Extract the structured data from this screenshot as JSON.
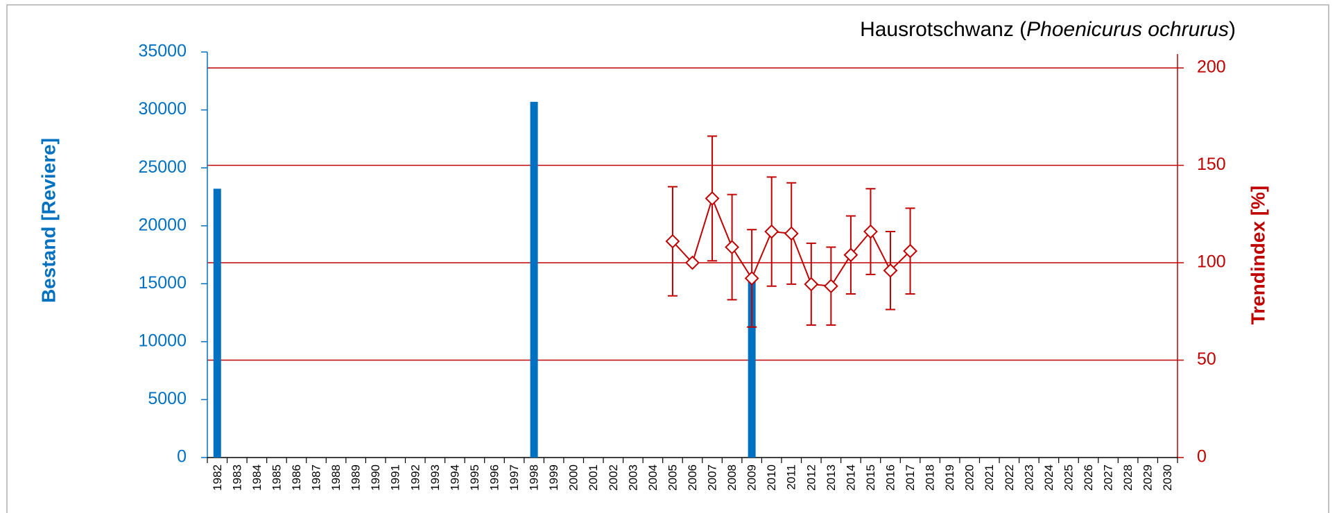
{
  "chart_data": {
    "type": "bar_line",
    "title": [
      "Hausrotschwanz (",
      "Phoenicurus ochrurus",
      ")"
    ],
    "ylabel": "Bestand [Reviere]",
    "y2label": "Trendindex [%]",
    "categories": [
      "1982",
      "1983",
      "1984",
      "1985",
      "1986",
      "1987",
      "1988",
      "1989",
      "1990",
      "1991",
      "1992",
      "1993",
      "1994",
      "1995",
      "1996",
      "1997",
      "1998",
      "1999",
      "2000",
      "2001",
      "2002",
      "2003",
      "2004",
      "2005",
      "2006",
      "2007",
      "2008",
      "2009",
      "2010",
      "2011",
      "2012",
      "2013",
      "2014",
      "2015",
      "2016",
      "2017",
      "2018",
      "2019",
      "2020",
      "2021",
      "2022",
      "2023",
      "2024",
      "2025",
      "2026",
      "2027",
      "2028",
      "2029",
      "2030"
    ],
    "ylim": [
      0,
      35000
    ],
    "yticks": [
      0,
      5000,
      10000,
      15000,
      20000,
      25000,
      30000,
      35000
    ],
    "y2lim": [
      0,
      200
    ],
    "y2ticks": [
      0,
      50,
      100,
      150,
      200
    ],
    "grid": true,
    "series": [
      {
        "name": "Bestand",
        "type": "bar",
        "color": "#0070c0",
        "values": [
          23200,
          null,
          null,
          null,
          null,
          null,
          null,
          null,
          null,
          null,
          null,
          null,
          null,
          null,
          null,
          null,
          30700,
          null,
          null,
          null,
          null,
          null,
          null,
          null,
          null,
          null,
          null,
          15400,
          null,
          null,
          null,
          null,
          null,
          null,
          null,
          null,
          null,
          null,
          null,
          null,
          null,
          null,
          null,
          null,
          null,
          null,
          null,
          null,
          null
        ]
      },
      {
        "name": "Trendindex",
        "type": "line",
        "axis": "y2",
        "color": "#c00000",
        "values": [
          null,
          null,
          null,
          null,
          null,
          null,
          null,
          null,
          null,
          null,
          null,
          null,
          null,
          null,
          null,
          null,
          null,
          null,
          null,
          null,
          null,
          null,
          null,
          111,
          100,
          133,
          108,
          92,
          116,
          115,
          89,
          88,
          104,
          116,
          96,
          106,
          null,
          null,
          null,
          null,
          null,
          null,
          null,
          null,
          null,
          null,
          null,
          null,
          null
        ],
        "errors": [
          null,
          null,
          null,
          null,
          null,
          null,
          null,
          null,
          null,
          null,
          null,
          null,
          null,
          null,
          null,
          null,
          null,
          null,
          null,
          null,
          null,
          null,
          null,
          28,
          null,
          32,
          27,
          25,
          28,
          26,
          21,
          20,
          20,
          22,
          20,
          22,
          null,
          null,
          null,
          null,
          null,
          null,
          null,
          null,
          null,
          null,
          null,
          null,
          null
        ]
      }
    ]
  }
}
